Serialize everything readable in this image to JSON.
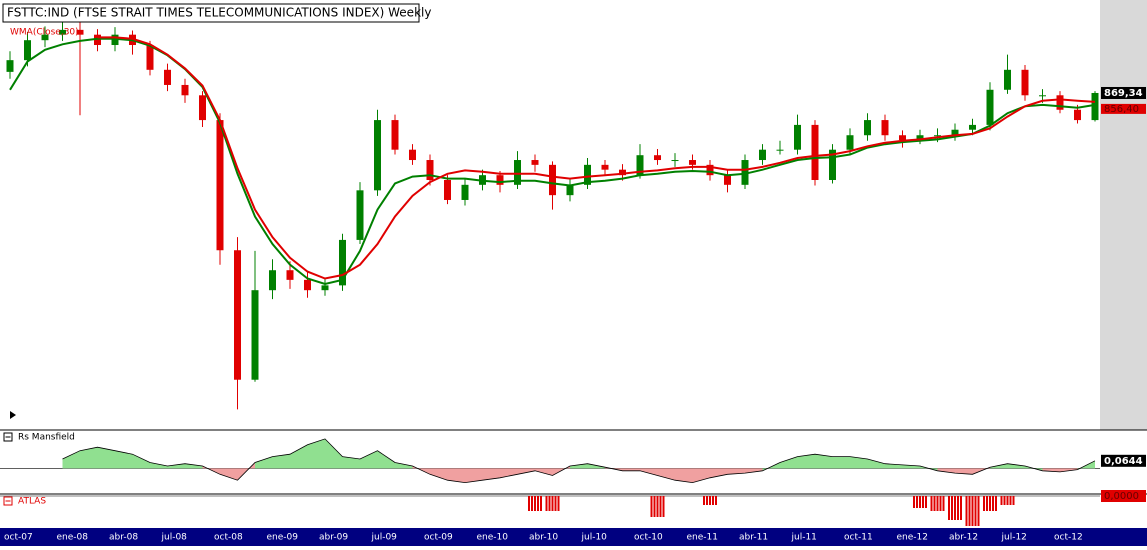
{
  "chart_data": [
    {
      "type": "candlestick",
      "title": "FSTTC:IND (FTSE STRAIT TIMES TELECOMMUNICATIONS INDEX) Weekly",
      "categories": [
        "oct-07",
        null,
        null,
        "ene-08",
        null,
        null,
        "abr-08",
        null,
        null,
        "jul-08",
        null,
        null,
        "oct-08",
        null,
        null,
        "ene-09",
        null,
        null,
        "abr-09",
        null,
        null,
        "jul-09",
        null,
        null,
        "oct-09",
        null,
        null,
        "ene-10",
        null,
        null,
        "abr-10",
        null,
        null,
        "jul-10",
        null,
        null,
        "oct-10",
        null,
        null,
        "ene-11",
        null,
        null,
        "abr-11",
        null,
        null,
        "jul-11",
        null,
        null,
        "oct-11",
        null,
        null,
        "ene-12",
        null,
        null,
        "abr-12",
        null,
        null,
        "jul-12",
        null,
        null,
        "oct-12",
        null,
        null
      ],
      "open": [
        900,
        917,
        946,
        954,
        961,
        954,
        939,
        954,
        939,
        903,
        881,
        866,
        830,
        641,
        453,
        583,
        612,
        598,
        583,
        590,
        656,
        728,
        830,
        787,
        772,
        743,
        714,
        736,
        750,
        736,
        772,
        765,
        721,
        736,
        765,
        758,
        750,
        779,
        772,
        772,
        765,
        750,
        736,
        772,
        787,
        787,
        823,
        743,
        787,
        808,
        830,
        808,
        801,
        808,
        808,
        816,
        823,
        874,
        903,
        866,
        866,
        845,
        830
      ],
      "high": [
        930,
        958,
        966,
        975,
        972,
        962,
        965,
        960,
        945,
        912,
        890,
        872,
        840,
        660,
        640,
        628,
        625,
        610,
        600,
        665,
        740,
        845,
        838,
        795,
        780,
        750,
        745,
        758,
        756,
        785,
        780,
        770,
        745,
        775,
        772,
        766,
        795,
        788,
        782,
        780,
        772,
        758,
        780,
        795,
        800,
        838,
        830,
        795,
        818,
        840,
        838,
        815,
        816,
        818,
        825,
        832,
        885,
        925,
        910,
        875,
        872,
        852,
        872
      ],
      "low": [
        890,
        908,
        936,
        945,
        837,
        930,
        930,
        925,
        895,
        872,
        855,
        820,
        620,
        410,
        450,
        570,
        585,
        572,
        575,
        582,
        650,
        720,
        780,
        765,
        735,
        708,
        706,
        728,
        725,
        730,
        755,
        700,
        712,
        730,
        750,
        742,
        745,
        765,
        762,
        758,
        742,
        725,
        730,
        765,
        780,
        780,
        735,
        738,
        780,
        800,
        800,
        790,
        795,
        798,
        800,
        808,
        815,
        868,
        858,
        855,
        840,
        825,
        828
      ],
      "close": [
        917,
        946,
        954,
        961,
        954,
        939,
        954,
        939,
        903,
        881,
        866,
        830,
        641,
        453,
        583,
        612,
        598,
        583,
        590,
        656,
        728,
        830,
        787,
        772,
        743,
        714,
        736,
        750,
        736,
        772,
        765,
        721,
        736,
        765,
        758,
        750,
        779,
        772,
        772,
        765,
        750,
        736,
        772,
        787,
        787,
        823,
        743,
        787,
        808,
        830,
        808,
        801,
        808,
        808,
        816,
        823,
        874,
        903,
        866,
        866,
        845,
        830,
        869.34
      ],
      "up_color": "#008000",
      "down_color": "#e00000",
      "ylim": [
        380,
        1000
      ],
      "last_price": {
        "value": 869.34,
        "label": "869,34"
      },
      "overlays": [
        {
          "name": "WMA(Close,30)",
          "color": "#e00000",
          "values": [
            null,
            null,
            null,
            null,
            null,
            950,
            950,
            948,
            940,
            925,
            905,
            880,
            830,
            760,
            700,
            660,
            630,
            610,
            600,
            605,
            620,
            650,
            690,
            720,
            740,
            752,
            757,
            755,
            752,
            752,
            752,
            748,
            745,
            748,
            750,
            752,
            755,
            757,
            760,
            762,
            762,
            758,
            758,
            762,
            768,
            775,
            778,
            780,
            785,
            792,
            797,
            800,
            802,
            805,
            808,
            810,
            818,
            835,
            850,
            858,
            860,
            858,
            856.4
          ],
          "last_label": "856,40"
        },
        {
          "color": "#008000",
          "values": [
            874,
            915,
            932,
            940,
            945,
            948,
            948,
            946,
            938,
            924,
            904,
            878,
            826,
            752,
            690,
            650,
            620,
            600,
            592,
            598,
            640,
            700,
            738,
            748,
            750,
            745,
            745,
            742,
            740,
            742,
            742,
            738,
            735,
            740,
            742,
            745,
            750,
            752,
            755,
            756,
            755,
            750,
            752,
            758,
            765,
            772,
            775,
            776,
            780,
            790,
            795,
            798,
            800,
            802,
            806,
            810,
            822,
            840,
            850,
            852,
            850,
            848,
            852
          ]
        }
      ]
    },
    {
      "type": "area",
      "title": "Rs Mansfield",
      "pos_color": "#90e090",
      "neg_color": "#f0a0a0",
      "values": [
        null,
        null,
        null,
        0.08,
        0.15,
        0.18,
        0.15,
        0.12,
        0.05,
        0.02,
        0.04,
        0.02,
        -0.05,
        -0.1,
        0.05,
        0.1,
        0.12,
        0.2,
        0.25,
        0.1,
        0.08,
        0.15,
        0.05,
        0.02,
        -0.05,
        -0.1,
        -0.12,
        -0.1,
        -0.08,
        -0.05,
        -0.02,
        -0.06,
        0.02,
        0.04,
        0.01,
        -0.02,
        -0.02,
        -0.06,
        -0.1,
        -0.12,
        -0.08,
        -0.05,
        -0.04,
        -0.02,
        0.05,
        0.1,
        0.12,
        0.1,
        0.1,
        0.08,
        0.04,
        0.03,
        0.02,
        -0.02,
        -0.04,
        -0.05,
        0.01,
        0.04,
        0.02,
        -0.02,
        -0.03,
        -0.01,
        0.0644
      ],
      "ylim": [
        -0.2,
        0.3
      ],
      "last_value": {
        "value": 0.0644,
        "label": "0,0644"
      }
    },
    {
      "type": "bar",
      "title": "ATLAS",
      "color": "#e00000",
      "values": [
        0,
        0,
        0,
        0,
        0,
        0,
        0,
        0,
        0,
        0,
        0,
        0,
        0,
        0,
        0,
        0,
        0,
        0,
        0,
        0,
        0,
        0,
        0,
        0,
        0,
        0,
        0,
        0,
        0,
        0,
        -0.5,
        -0.5,
        0,
        0,
        0,
        0,
        0,
        -0.7,
        0,
        0,
        -0.3,
        0,
        0,
        0,
        0,
        0,
        0,
        0,
        0,
        0,
        0,
        0,
        -0.4,
        -0.5,
        -0.8,
        -1.0,
        -0.5,
        -0.3,
        0,
        0,
        0,
        0,
        0
      ],
      "ylim": [
        -1,
        0
      ],
      "last_value": {
        "value": 0,
        "label": "0,0000"
      }
    }
  ]
}
